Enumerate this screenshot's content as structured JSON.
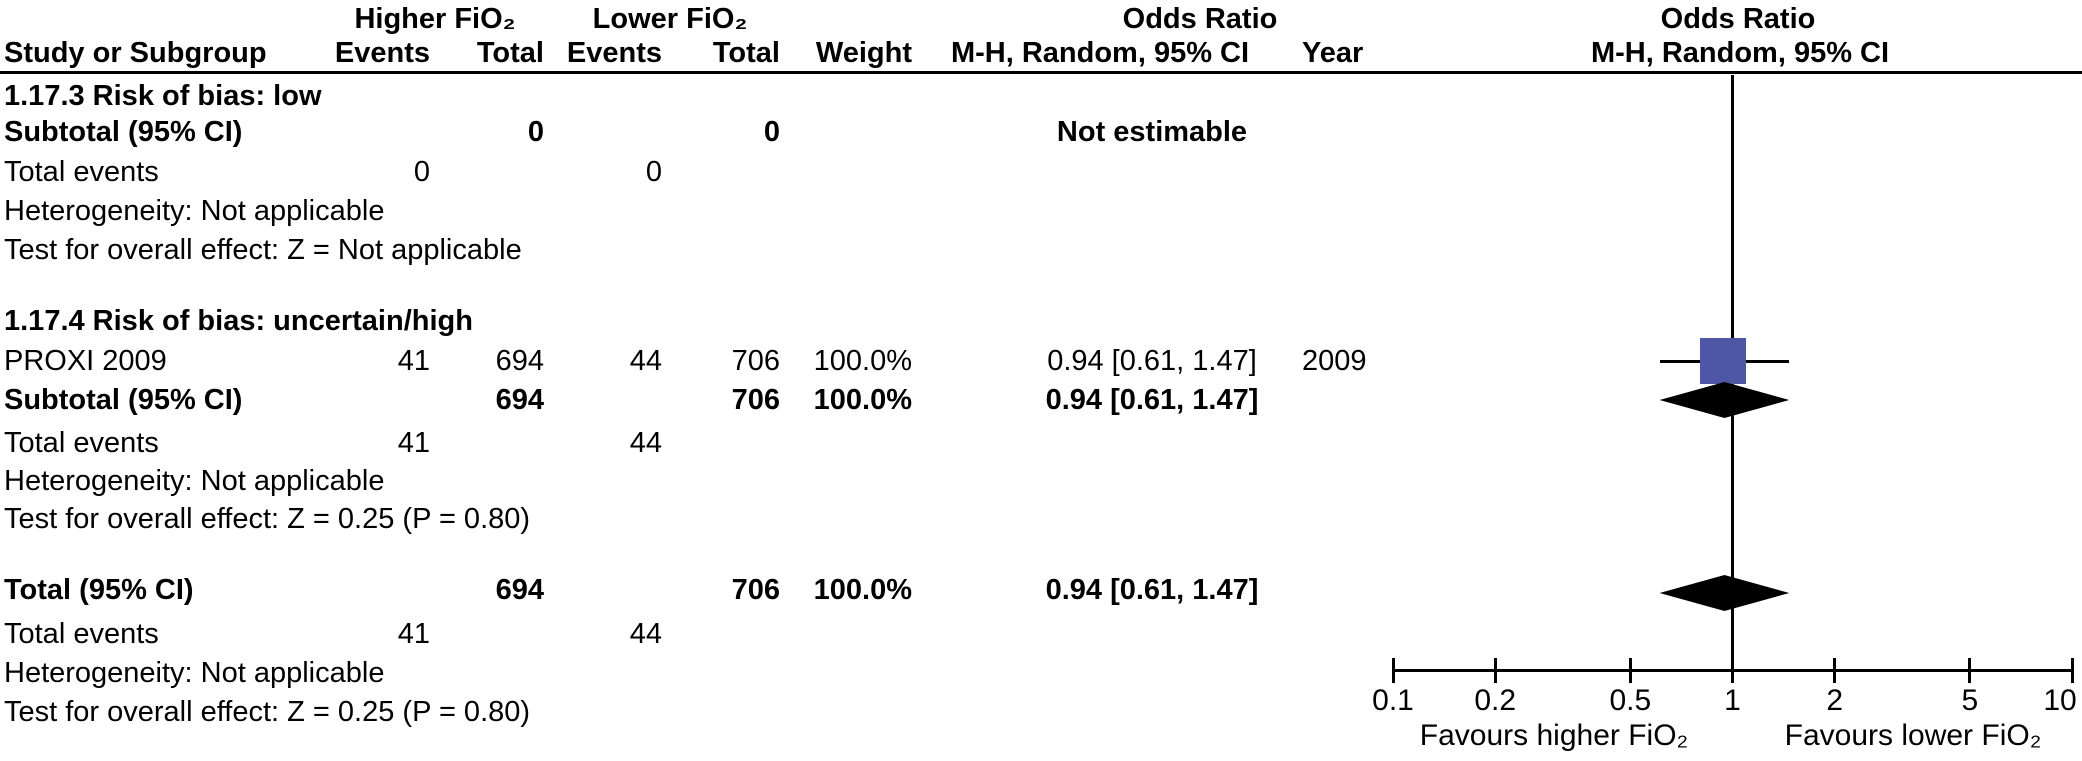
{
  "header": {
    "group_higher": "Higher FiO₂",
    "group_lower": "Lower FiO₂",
    "odds_ratio_left": "Odds Ratio",
    "odds_ratio_right": "Odds Ratio",
    "col_study": "Study or Subgroup",
    "col_events": "Events",
    "col_total": "Total",
    "col_events2": "Events",
    "col_total2": "Total",
    "col_weight": "Weight",
    "col_mh_left": "M-H, Random, 95% CI",
    "col_year": "Year",
    "col_mh_right": "M-H, Random, 95% CI"
  },
  "table": {
    "rows": [
      {
        "type": "subgroup-header",
        "label": "1.17.3 Risk of bias: low"
      },
      {
        "type": "subtotal",
        "label": "Subtotal (95% CI)",
        "tot_h": "0",
        "tot_l": "0",
        "or_ci": "Not estimable"
      },
      {
        "type": "total-events",
        "label": "Total events",
        "ev_h": "0",
        "ev_l": "0"
      },
      {
        "type": "note",
        "label": "Heterogeneity: Not applicable"
      },
      {
        "type": "note",
        "label": "Test for overall effect: Z = Not applicable"
      },
      {
        "type": "subgroup-header",
        "label": "1.17.4 Risk of bias: uncertain/high"
      },
      {
        "type": "study",
        "label": "PROXI 2009",
        "ev_h": "41",
        "tot_h": "694",
        "ev_l": "44",
        "tot_l": "706",
        "weight": "100.0%",
        "or_ci": "0.94 [0.61, 1.47]",
        "year": "2009"
      },
      {
        "type": "subtotal",
        "label": "Subtotal (95% CI)",
        "tot_h": "694",
        "tot_l": "706",
        "weight": "100.0%",
        "or_ci": "0.94 [0.61, 1.47]"
      },
      {
        "type": "total-events",
        "label": "Total events",
        "ev_h": "41",
        "ev_l": "44"
      },
      {
        "type": "note",
        "label": "Heterogeneity: Not applicable"
      },
      {
        "type": "note",
        "label": "Test for overall effect: Z = 0.25 (P = 0.80)"
      },
      {
        "type": "total",
        "label": "Total (95% CI)",
        "tot_h": "694",
        "tot_l": "706",
        "weight": "100.0%",
        "or_ci": "0.94 [0.61, 1.47]"
      },
      {
        "type": "total-events",
        "label": "Total events",
        "ev_h": "41",
        "ev_l": "44"
      },
      {
        "type": "note",
        "label": "Heterogeneity: Not applicable"
      },
      {
        "type": "note",
        "label": "Test for overall effect: Z = 0.25 (P = 0.80)"
      }
    ]
  },
  "chart_data": {
    "type": "forest",
    "effect_measure": "Odds Ratio",
    "method_label": "M-H, Random, 95% CI",
    "x_scale": "log",
    "axis": {
      "min": 0.1,
      "max": 10,
      "ticks": [
        0.1,
        0.2,
        0.5,
        1,
        2,
        5,
        10
      ],
      "null_line": 1
    },
    "favours_left": "Favours higher FiO₂",
    "favours_right": "Favours lower FiO₂",
    "subgroups": [
      {
        "id": "1.17.3",
        "label": "1.17.3 Risk of bias: low",
        "studies": [],
        "subtotal": {
          "total_higher": 0,
          "total_lower": 0,
          "estimate": "Not estimable"
        },
        "total_events_higher": 0,
        "total_events_lower": 0,
        "heterogeneity": "Not applicable",
        "overall_effect": "Z = Not applicable"
      },
      {
        "id": "1.17.4",
        "label": "1.17.4 Risk of bias: uncertain/high",
        "studies": [
          {
            "study": "PROXI 2009",
            "events_higher": 41,
            "total_higher": 694,
            "events_lower": 44,
            "total_lower": 706,
            "weight_pct": 100.0,
            "or": 0.94,
            "ci_low": 0.61,
            "ci_high": 1.47,
            "year": 2009
          }
        ],
        "subtotal": {
          "total_higher": 694,
          "total_lower": 706,
          "weight_pct": 100.0,
          "or": 0.94,
          "ci_low": 0.61,
          "ci_high": 1.47
        },
        "total_events_higher": 41,
        "total_events_lower": 44,
        "heterogeneity": "Not applicable",
        "overall_effect": "Z = 0.25 (P = 0.80)"
      }
    ],
    "total": {
      "total_higher": 694,
      "total_lower": 706,
      "weight_pct": 100.0,
      "or": 0.94,
      "ci_low": 0.61,
      "ci_high": 1.47,
      "total_events_higher": 41,
      "total_events_lower": 44,
      "heterogeneity": "Not applicable",
      "overall_effect": "Z = 0.25 (P = 0.80)"
    },
    "markers": [
      {
        "kind": "square",
        "row": "PROXI 2009",
        "or": 0.94,
        "ci_low": 0.61,
        "ci_high": 1.47,
        "color": "#4d57a6"
      },
      {
        "kind": "diamond",
        "row": "Subtotal (95% CI)",
        "or": 0.94,
        "ci_low": 0.61,
        "ci_high": 1.47,
        "color": "#000000"
      },
      {
        "kind": "diamond",
        "row": "Total (95% CI)",
        "or": 0.94,
        "ci_low": 0.61,
        "ci_high": 1.47,
        "color": "#000000"
      }
    ]
  }
}
